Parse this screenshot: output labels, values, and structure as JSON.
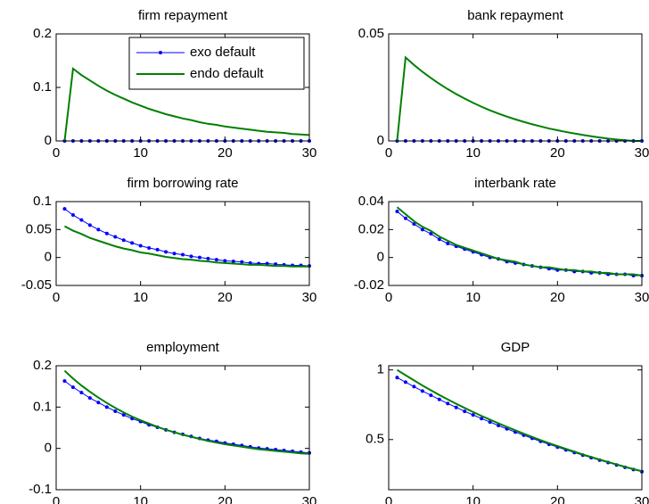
{
  "chart_data": [
    {
      "type": "line",
      "title": "firm repayment",
      "legend": "upper right",
      "x": [
        1,
        2,
        3,
        4,
        5,
        6,
        7,
        8,
        9,
        10,
        11,
        12,
        13,
        14,
        15,
        16,
        17,
        18,
        19,
        20,
        21,
        22,
        23,
        24,
        25,
        26,
        27,
        28,
        29,
        30
      ],
      "xlim": [
        0,
        30
      ],
      "xticks": [
        0,
        10,
        20,
        30
      ],
      "ylim": [
        0,
        0.2
      ],
      "yticks": [
        0,
        0.1,
        0.2
      ],
      "series": [
        {
          "name": "exo default",
          "color": "#0000ff",
          "marker": true,
          "values": [
            0,
            0,
            0,
            0,
            0,
            0,
            0,
            0,
            0,
            0,
            0,
            0,
            0,
            0,
            0,
            0,
            0,
            0,
            0,
            0,
            0,
            0,
            0,
            0,
            0,
            0,
            0,
            0,
            0,
            0
          ]
        },
        {
          "name": "endo default",
          "color": "#008000",
          "marker": false,
          "values": [
            0,
            0.135,
            0.123,
            0.113,
            0.103,
            0.094,
            0.086,
            0.079,
            0.072,
            0.066,
            0.06,
            0.055,
            0.05,
            0.046,
            0.042,
            0.039,
            0.035,
            0.032,
            0.03,
            0.027,
            0.025,
            0.023,
            0.021,
            0.019,
            0.017,
            0.016,
            0.015,
            0.013,
            0.012,
            0.011
          ]
        }
      ]
    },
    {
      "type": "line",
      "title": "bank repayment",
      "x": [
        1,
        2,
        3,
        4,
        5,
        6,
        7,
        8,
        9,
        10,
        11,
        12,
        13,
        14,
        15,
        16,
        17,
        18,
        19,
        20,
        21,
        22,
        23,
        24,
        25,
        26,
        27,
        28,
        29,
        30
      ],
      "xlim": [
        0,
        30
      ],
      "xticks": [
        0,
        10,
        20,
        30
      ],
      "ylim": [
        0,
        0.05
      ],
      "yticks": [
        0,
        0.05
      ],
      "series": [
        {
          "color": "#0000ff",
          "marker": true,
          "values": [
            0,
            0,
            0,
            0,
            0,
            0,
            0,
            0,
            0,
            0,
            0,
            0,
            0,
            0,
            0,
            0,
            0,
            0,
            0,
            0,
            0,
            0,
            0,
            0,
            0,
            0,
            0,
            0,
            0,
            0
          ]
        },
        {
          "color": "#008000",
          "marker": false,
          "values": [
            0,
            0.039,
            0.0355,
            0.0323,
            0.0294,
            0.0267,
            0.0242,
            0.0219,
            0.0198,
            0.0178,
            0.016,
            0.0143,
            0.0128,
            0.0114,
            0.0101,
            0.0089,
            0.0078,
            0.0068,
            0.0058,
            0.005,
            0.0042,
            0.0035,
            0.0028,
            0.0022,
            0.0016,
            0.0011,
            0.0007,
            0.0003,
            0,
            0
          ]
        }
      ]
    },
    {
      "type": "line",
      "title": "firm borrowing rate",
      "x": [
        1,
        2,
        3,
        4,
        5,
        6,
        7,
        8,
        9,
        10,
        11,
        12,
        13,
        14,
        15,
        16,
        17,
        18,
        19,
        20,
        21,
        22,
        23,
        24,
        25,
        26,
        27,
        28,
        29,
        30
      ],
      "xlim": [
        0,
        30
      ],
      "xticks": [
        0,
        10,
        20,
        30
      ],
      "ylim": [
        -0.05,
        0.1
      ],
      "yticks": [
        -0.05,
        0,
        0.05,
        0.1
      ],
      "series": [
        {
          "color": "#0000ff",
          "marker": true,
          "values": [
            0.087,
            0.076,
            0.067,
            0.058,
            0.05,
            0.043,
            0.037,
            0.031,
            0.026,
            0.021,
            0.017,
            0.014,
            0.01,
            0.007,
            0.005,
            0.002,
            0.0,
            -0.002,
            -0.004,
            -0.006,
            -0.007,
            -0.008,
            -0.01,
            -0.011,
            -0.011,
            -0.012,
            -0.013,
            -0.014,
            -0.014,
            -0.015
          ]
        },
        {
          "color": "#008000",
          "marker": false,
          "values": [
            0.056,
            0.048,
            0.042,
            0.035,
            0.03,
            0.025,
            0.02,
            0.016,
            0.013,
            0.009,
            0.007,
            0.004,
            0.001,
            -0.001,
            -0.003,
            -0.004,
            -0.006,
            -0.007,
            -0.009,
            -0.01,
            -0.011,
            -0.012,
            -0.013,
            -0.013,
            -0.014,
            -0.015,
            -0.015,
            -0.016,
            -0.016,
            -0.016
          ]
        }
      ]
    },
    {
      "type": "line",
      "title": "interbank rate",
      "x": [
        1,
        2,
        3,
        4,
        5,
        6,
        7,
        8,
        9,
        10,
        11,
        12,
        13,
        14,
        15,
        16,
        17,
        18,
        19,
        20,
        21,
        22,
        23,
        24,
        25,
        26,
        27,
        28,
        29,
        30
      ],
      "xlim": [
        0,
        30
      ],
      "xticks": [
        0,
        10,
        20,
        30
      ],
      "ylim": [
        -0.02,
        0.04
      ],
      "yticks": [
        -0.02,
        0,
        0.02,
        0.04
      ],
      "series": [
        {
          "color": "#0000ff",
          "marker": true,
          "values": [
            0.033,
            0.028,
            0.024,
            0.02,
            0.017,
            0.013,
            0.01,
            0.008,
            0.006,
            0.004,
            0.002,
            0.0,
            -0.001,
            -0.003,
            -0.004,
            -0.005,
            -0.006,
            -0.007,
            -0.008,
            -0.009,
            -0.009,
            -0.01,
            -0.01,
            -0.011,
            -0.011,
            -0.012,
            -0.012,
            -0.012,
            -0.013,
            -0.013
          ]
        },
        {
          "color": "#008000",
          "marker": false,
          "values": [
            0.036,
            0.031,
            0.026,
            0.022,
            0.019,
            0.015,
            0.012,
            0.009,
            0.007,
            0.005,
            0.003,
            0.001,
            -0.001,
            -0.002,
            -0.003,
            -0.005,
            -0.006,
            -0.007,
            -0.007,
            -0.008,
            -0.009,
            -0.009,
            -0.01,
            -0.01,
            -0.011,
            -0.011,
            -0.012,
            -0.012,
            -0.012,
            -0.013
          ]
        }
      ]
    },
    {
      "type": "line",
      "title": "employment",
      "x": [
        1,
        2,
        3,
        4,
        5,
        6,
        7,
        8,
        9,
        10,
        11,
        12,
        13,
        14,
        15,
        16,
        17,
        18,
        19,
        20,
        21,
        22,
        23,
        24,
        25,
        26,
        27,
        28,
        29,
        30
      ],
      "xlim": [
        0,
        30
      ],
      "xticks": [
        0,
        10,
        20,
        30
      ],
      "ylim": [
        -0.1,
        0.2
      ],
      "yticks": [
        -0.1,
        0,
        0.1,
        0.2
      ],
      "series": [
        {
          "color": "#0000ff",
          "marker": true,
          "values": [
            0.163,
            0.148,
            0.135,
            0.122,
            0.111,
            0.1,
            0.09,
            0.081,
            0.072,
            0.065,
            0.057,
            0.051,
            0.045,
            0.039,
            0.034,
            0.029,
            0.024,
            0.02,
            0.017,
            0.013,
            0.01,
            0.007,
            0.004,
            0.001,
            -0.001,
            -0.003,
            -0.005,
            -0.007,
            -0.009,
            -0.011
          ]
        },
        {
          "color": "#008000",
          "marker": false,
          "values": [
            0.188,
            0.169,
            0.152,
            0.137,
            0.123,
            0.11,
            0.098,
            0.087,
            0.077,
            0.068,
            0.06,
            0.052,
            0.045,
            0.039,
            0.033,
            0.028,
            0.023,
            0.018,
            0.014,
            0.01,
            0.007,
            0.004,
            0.001,
            -0.002,
            -0.004,
            -0.006,
            -0.008,
            -0.01,
            -0.012,
            -0.013
          ]
        }
      ]
    },
    {
      "type": "line",
      "title": "GDP",
      "x": [
        1,
        2,
        3,
        4,
        5,
        6,
        7,
        8,
        9,
        10,
        11,
        12,
        13,
        14,
        15,
        16,
        17,
        18,
        19,
        20,
        21,
        22,
        23,
        24,
        25,
        26,
        27,
        28,
        29,
        30
      ],
      "xlim": [
        0,
        30
      ],
      "xticks": [
        0,
        10,
        20,
        30
      ],
      "ylim": [
        0.14,
        1.03
      ],
      "yticks": [
        0.5,
        1
      ],
      "series": [
        {
          "color": "#0000ff",
          "marker": true,
          "values": [
            0.945,
            0.912,
            0.88,
            0.848,
            0.818,
            0.788,
            0.759,
            0.731,
            0.703,
            0.677,
            0.651,
            0.626,
            0.601,
            0.577,
            0.554,
            0.531,
            0.509,
            0.487,
            0.466,
            0.446,
            0.426,
            0.407,
            0.388,
            0.37,
            0.352,
            0.335,
            0.318,
            0.301,
            0.285,
            0.27
          ]
        },
        {
          "color": "#008000",
          "marker": false,
          "values": [
            1.0,
            0.962,
            0.925,
            0.888,
            0.854,
            0.82,
            0.788,
            0.757,
            0.727,
            0.698,
            0.67,
            0.643,
            0.617,
            0.591,
            0.567,
            0.542,
            0.519,
            0.496,
            0.474,
            0.453,
            0.433,
            0.413,
            0.393,
            0.375,
            0.356,
            0.339,
            0.322,
            0.304,
            0.288,
            0.273
          ]
        }
      ]
    }
  ]
}
